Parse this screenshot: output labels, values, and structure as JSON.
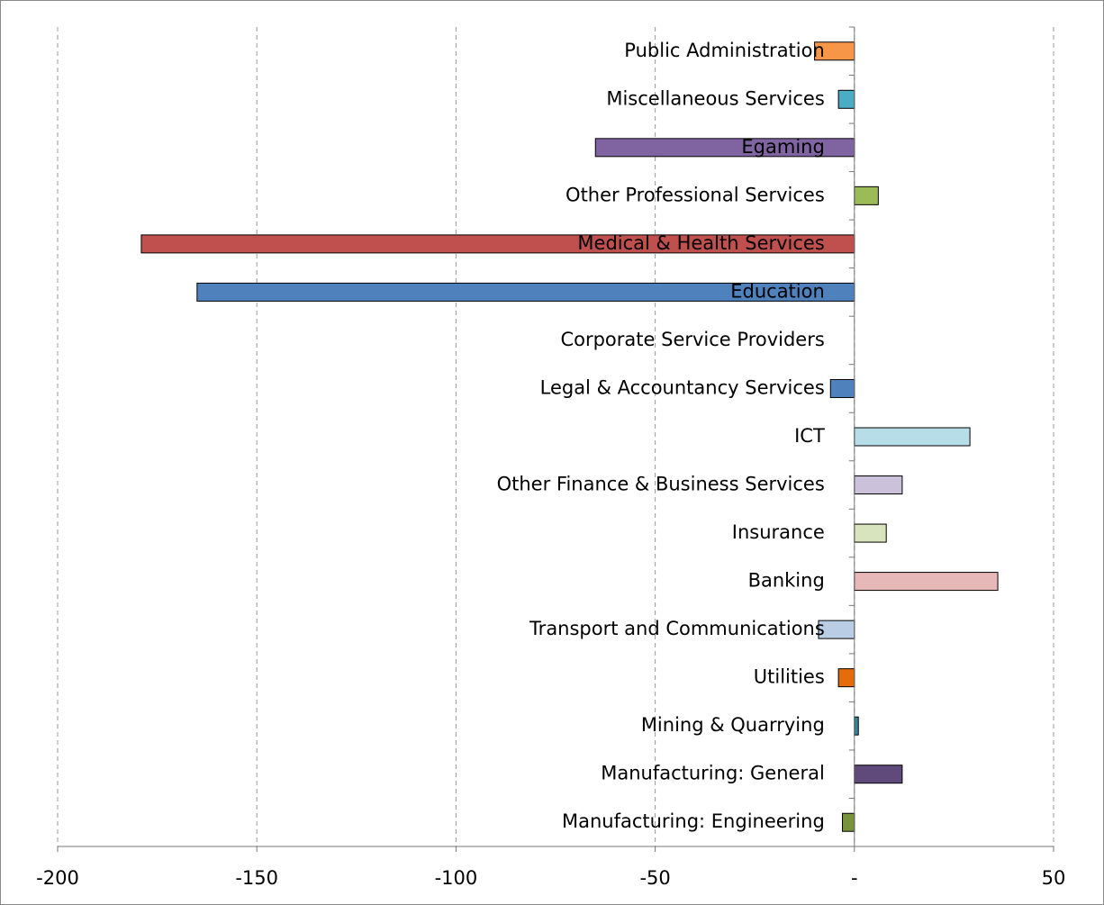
{
  "chart_data": {
    "type": "bar",
    "orientation": "horizontal",
    "categories": [
      "Public Administration",
      "Miscellaneous Services",
      "Egaming",
      "Other Professional Services",
      "Medical & Health Services",
      "Education",
      "Corporate Service Providers",
      "Legal & Accountancy Services",
      "ICT",
      "Other Finance & Business Services",
      "Insurance",
      "Banking",
      "Transport and Communications",
      "Utilities",
      "Mining & Quarrying",
      "Manufacturing: General",
      "Manufacturing: Engineering"
    ],
    "values": [
      -10,
      -4,
      -65,
      6,
      -179,
      -165,
      0,
      -6,
      29,
      12,
      8,
      36,
      -9,
      -4,
      1,
      12,
      -3
    ],
    "colors": [
      "#f79646",
      "#4bacc6",
      "#8064a2",
      "#9bbb59",
      "#c0504d",
      "#4f81bd",
      "#4f81bd",
      "#4f81bd",
      "#b7dee8",
      "#ccc1da",
      "#d7e4bd",
      "#e6b9b8",
      "#b9cde5",
      "#e46c0a",
      "#31859c",
      "#604a7b",
      "#77933c"
    ],
    "xlim": [
      -200,
      50
    ],
    "xticks": [
      -200,
      -150,
      -100,
      -50,
      {
        "value": 0,
        "label": "-"
      },
      50
    ],
    "grid": true
  }
}
